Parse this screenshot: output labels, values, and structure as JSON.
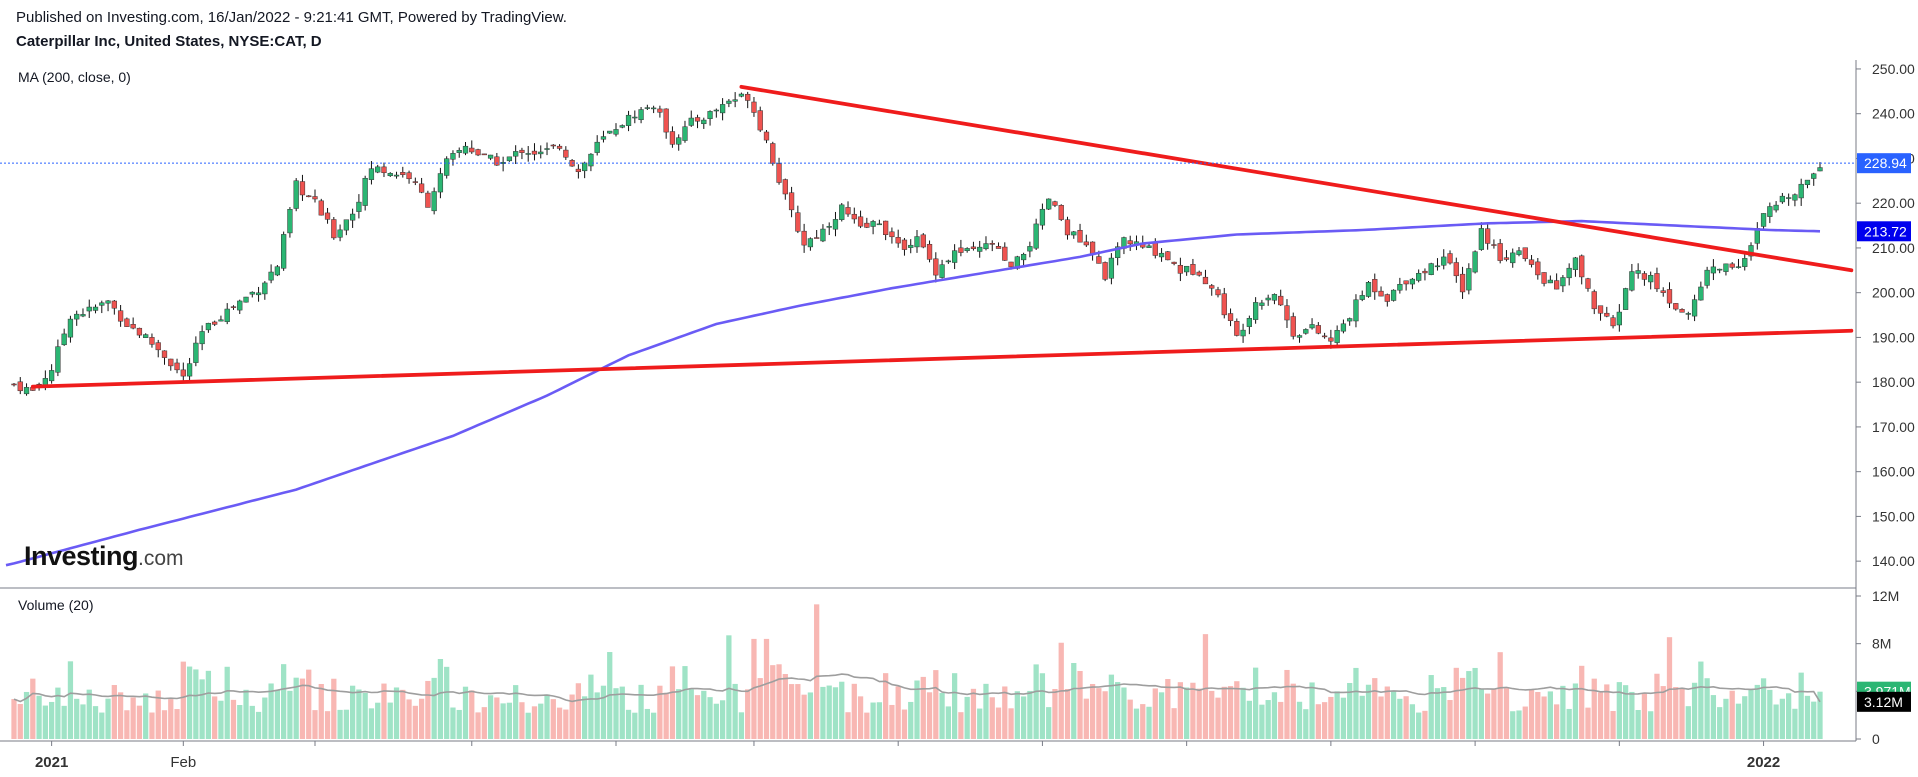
{
  "header": {
    "published": "Published on Investing.com, 16/Jan/2022 - 9:21:41 GMT, Powered by TradingView.",
    "symbol": "Caterpillar Inc, United States, NYSE:CAT, D"
  },
  "ma_label": "MA (200, close, 0)",
  "volume_label": "Volume (20)",
  "logo": {
    "main": "Investing",
    "suffix": ".com"
  },
  "colors": {
    "up": "#26a69a",
    "up_fill": "#2bb673",
    "down": "#ef5350",
    "trendline": "#ef1c1c",
    "ma": "#6a5bf5",
    "last_price_badge": "#2962ff",
    "ma_badge": "#0000ee",
    "vol_up": "#9fe3c6",
    "vol_down": "#f8b7b3",
    "vol_ma": "#9e9e9e"
  },
  "chart_data": {
    "type": "candlestick",
    "title": "Caterpillar Inc, United States, NYSE:CAT, D",
    "price_axis": {
      "ylim": [
        134,
        252
      ],
      "ticks": [
        {
          "value": 250,
          "label": "250.00"
        },
        {
          "value": 240,
          "label": "240.00"
        },
        {
          "value": 230,
          "label": "230.00"
        },
        {
          "value": 220,
          "label": "220.00"
        },
        {
          "value": 210,
          "label": "210.00"
        },
        {
          "value": 200,
          "label": "200.00"
        },
        {
          "value": 190,
          "label": "190.00"
        },
        {
          "value": 180,
          "label": "180.00"
        },
        {
          "value": 170,
          "label": "170.00"
        },
        {
          "value": 160,
          "label": "160.00"
        },
        {
          "value": 150,
          "label": "150.00"
        },
        {
          "value": 140,
          "label": "140.00"
        }
      ]
    },
    "volume_axis": {
      "ylim": [
        0,
        12
      ],
      "ticks": [
        {
          "value": 12,
          "label": "12M"
        },
        {
          "value": 8,
          "label": "8M"
        },
        {
          "value": 4,
          "label": "4M"
        },
        {
          "value": 0,
          "label": "0"
        }
      ]
    },
    "time_axis": {
      "labels": [
        {
          "bar": 6,
          "label": "2021",
          "bold": true
        },
        {
          "bar": 27,
          "label": "Feb",
          "bold": false
        },
        {
          "bar": 48,
          "label": "",
          "bold": false
        },
        {
          "bar": 73,
          "label": "",
          "bold": false
        },
        {
          "bar": 96,
          "label": "",
          "bold": false
        },
        {
          "bar": 118,
          "label": "",
          "bold": false
        },
        {
          "bar": 141,
          "label": "",
          "bold": false
        },
        {
          "bar": 164,
          "label": "",
          "bold": false
        },
        {
          "bar": 187,
          "label": "",
          "bold": false
        },
        {
          "bar": 210,
          "label": "",
          "bold": false
        },
        {
          "bar": 233,
          "label": "",
          "bold": false
        },
        {
          "bar": 256,
          "label": "",
          "bold": false
        },
        {
          "bar": 279,
          "label": "2022",
          "bold": true
        }
      ]
    },
    "last_price": {
      "value": 228.94,
      "label": "228.94"
    },
    "ma200_last": {
      "value": 213.72,
      "label": "213.72"
    },
    "last_volume": {
      "value": 3.971,
      "label": "3.971M"
    },
    "volume_ma_last": {
      "value": 3.12,
      "label": "3.12M"
    },
    "price_knots": [
      [
        0,
        179.5
      ],
      [
        3,
        178
      ],
      [
        6,
        183
      ],
      [
        9,
        195
      ],
      [
        12,
        196
      ],
      [
        15,
        198
      ],
      [
        18,
        193
      ],
      [
        21,
        190
      ],
      [
        24,
        186
      ],
      [
        27,
        181
      ],
      [
        30,
        191
      ],
      [
        33,
        195
      ],
      [
        36,
        198
      ],
      [
        39,
        201
      ],
      [
        42,
        206
      ],
      [
        45,
        224
      ],
      [
        48,
        220
      ],
      [
        51,
        213
      ],
      [
        54,
        218
      ],
      [
        57,
        228
      ],
      [
        60,
        227
      ],
      [
        63,
        226
      ],
      [
        66,
        220
      ],
      [
        69,
        229
      ],
      [
        72,
        233
      ],
      [
        75,
        230
      ],
      [
        78,
        229
      ],
      [
        81,
        232
      ],
      [
        84,
        231
      ],
      [
        87,
        233
      ],
      [
        90,
        227
      ],
      [
        93,
        233
      ],
      [
        96,
        237
      ],
      [
        99,
        240
      ],
      [
        102,
        242
      ],
      [
        105,
        234
      ],
      [
        108,
        238
      ],
      [
        111,
        240
      ],
      [
        114,
        243
      ],
      [
        117,
        244
      ],
      [
        120,
        234
      ],
      [
        123,
        221
      ],
      [
        126,
        211
      ],
      [
        129,
        214
      ],
      [
        132,
        219
      ],
      [
        135,
        214
      ],
      [
        138,
        216
      ],
      [
        141,
        210
      ],
      [
        144,
        212
      ],
      [
        147,
        205
      ],
      [
        150,
        209
      ],
      [
        153,
        209
      ],
      [
        156,
        211
      ],
      [
        159,
        205
      ],
      [
        162,
        211
      ],
      [
        165,
        221
      ],
      [
        168,
        214
      ],
      [
        171,
        210
      ],
      [
        174,
        204
      ],
      [
        177,
        212
      ],
      [
        180,
        210
      ],
      [
        183,
        209
      ],
      [
        186,
        205
      ],
      [
        189,
        205
      ],
      [
        192,
        199
      ],
      [
        195,
        190
      ],
      [
        198,
        198
      ],
      [
        201,
        200
      ],
      [
        204,
        191
      ],
      [
        207,
        192
      ],
      [
        210,
        189
      ],
      [
        213,
        195
      ],
      [
        216,
        202
      ],
      [
        219,
        199
      ],
      [
        222,
        203
      ],
      [
        225,
        205
      ],
      [
        228,
        208
      ],
      [
        231,
        201
      ],
      [
        234,
        214
      ],
      [
        237,
        208
      ],
      [
        240,
        209
      ],
      [
        243,
        204
      ],
      [
        246,
        201
      ],
      [
        249,
        207
      ],
      [
        252,
        197
      ],
      [
        255,
        192
      ],
      [
        258,
        205
      ],
      [
        261,
        203
      ],
      [
        264,
        198
      ],
      [
        267,
        195
      ],
      [
        270,
        205
      ],
      [
        273,
        206
      ],
      [
        276,
        207
      ],
      [
        279,
        217
      ],
      [
        282,
        221
      ],
      [
        285,
        224
      ],
      [
        288,
        228.94
      ]
    ],
    "ma200_knots": [
      [
        0,
        139.5
      ],
      [
        20,
        147
      ],
      [
        45,
        156
      ],
      [
        70,
        168
      ],
      [
        85,
        177
      ],
      [
        98,
        186
      ],
      [
        112,
        193
      ],
      [
        125,
        197
      ],
      [
        140,
        201
      ],
      [
        155,
        204.5
      ],
      [
        170,
        208
      ],
      [
        180,
        211
      ],
      [
        195,
        213
      ],
      [
        215,
        214
      ],
      [
        235,
        215.5
      ],
      [
        250,
        216
      ],
      [
        265,
        215
      ],
      [
        280,
        214
      ],
      [
        288,
        213.72
      ]
    ],
    "trendlines": [
      {
        "name": "upper-trendline",
        "from": [
          116,
          246
        ],
        "to": [
          293,
          205
        ]
      },
      {
        "name": "lower-trendline",
        "from": [
          3,
          179
        ],
        "to": [
          293,
          191.5
        ]
      }
    ],
    "bars_count": 289
  }
}
